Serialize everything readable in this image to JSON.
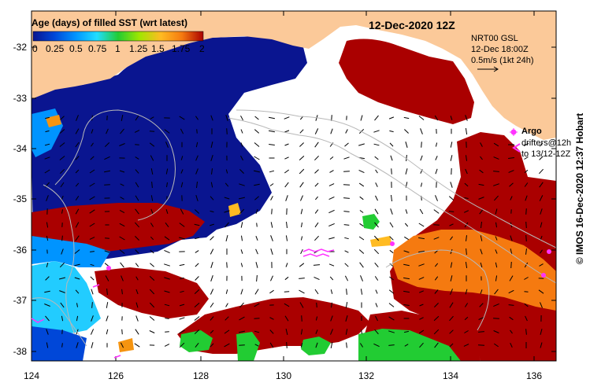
{
  "header": {
    "date_title": "12-Dec-2020 12Z",
    "product_line1": "NRT00 GSL",
    "product_line2": "12-Dec 18:00Z",
    "velocity_scale": "0.5m/s (1kt 24h)"
  },
  "colorbar": {
    "title": "Age (days) of filled SST (wrt latest)",
    "ticks": [
      "0",
      "0.25",
      "0.5",
      "0.75",
      "1",
      "1.25",
      "1.5",
      "1.75",
      "2"
    ],
    "stops": [
      "#0a1590",
      "#0047d8",
      "#0094ff",
      "#22ddff",
      "#22cc33",
      "#a0e600",
      "#ffbb22",
      "#f57a10",
      "#aa0000"
    ]
  },
  "legend": {
    "argo_label": "Argo",
    "drifters_label": "drifters@12h",
    "drifters_sublabel": "to 13/12-12Z",
    "argo_color": "#ff33ff",
    "drifter_color": "#ff33ff"
  },
  "axes": {
    "y_ticks": [
      "-32",
      "-33",
      "-34",
      "-35",
      "-36",
      "-37",
      "-38"
    ],
    "x_ticks": [
      "124",
      "126",
      "128",
      "130",
      "132",
      "134",
      "136"
    ]
  },
  "colors": {
    "land": "#fbc999",
    "ocean_no_data": "#ffffff",
    "contour": "#b8b8b8",
    "arrow": "#000000"
  },
  "credit": "© IMOS 16-Dec-2020 12:37 Hobart"
}
